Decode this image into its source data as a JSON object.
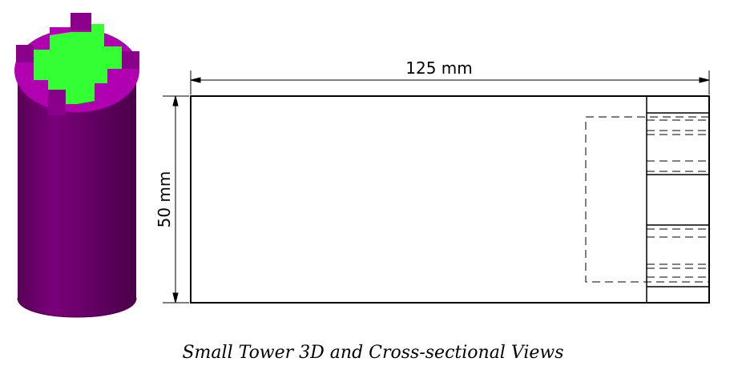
{
  "figure": {
    "caption": "Small Tower 3D and Cross-sectional Views",
    "width_dimension": "125 mm",
    "height_dimension": "50 mm",
    "colors": {
      "tower_body": "#6a0068",
      "tower_rim": "#b000b0",
      "tower_top_face": "#33ff33",
      "drawing_line": "#000000"
    }
  }
}
